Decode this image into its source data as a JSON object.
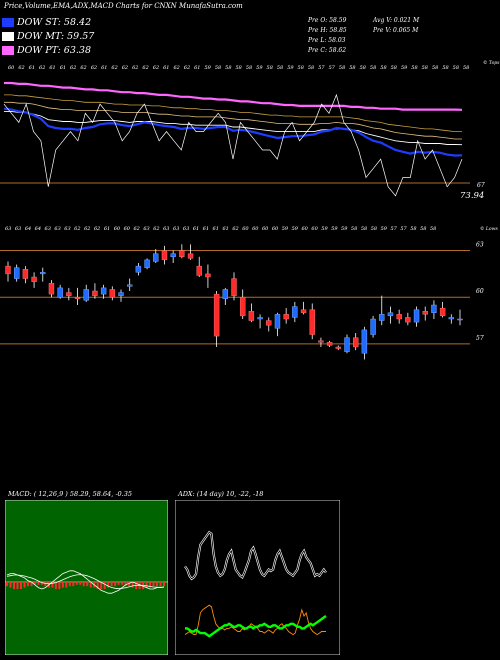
{
  "header": {
    "title": "Price,Volume,EMA,ADX,MACD Charts for CNXN",
    "site": "MunafaSutra.com",
    "legend": [
      {
        "label": "DOW ST: 58.42",
        "color": "#1e3cff"
      },
      {
        "label": "DOW MT: 59.57",
        "color": "#ffffff"
      },
      {
        "label": "DOW PT: 63.38",
        "color": "#ff66ff"
      }
    ],
    "prev": {
      "open": "Pre O: 58.59",
      "high": "Pre H: 58.85",
      "low": "Pre L: 58.03",
      "close": "Pre C: 58.62"
    },
    "avg_volume": "Avg V: 0.021 M",
    "prev_volume": "Pre V: 0.065 M"
  },
  "colors": {
    "ema_short": "#1e3cff",
    "ema_long": "#ff66ff",
    "level_line": "#b06a2a",
    "up": "#1e6bff",
    "down": "#ff2a2a",
    "macd_bg": "#006400",
    "adx_bg": "#000000",
    "adx_green": "#00ff00",
    "adx_orange": "#ff8c00"
  },
  "chart_data": [
    {
      "type": "line",
      "panel": "ema",
      "corner_label": "© Tops",
      "top_labels": [
        "60",
        "62",
        "61",
        "62",
        "61",
        "61",
        "62",
        "62",
        "62",
        "61",
        "62",
        "62",
        "62",
        "62",
        "62",
        "61",
        "62",
        "62",
        "61",
        "59",
        "58",
        "58",
        "58",
        "58",
        "59",
        "58",
        "58",
        "59",
        "58",
        "58",
        "57",
        "57",
        "58",
        "58",
        "58",
        "58",
        "58",
        "58",
        "59",
        "58",
        "58",
        "58",
        "58",
        "58",
        "58"
      ],
      "level": 67,
      "level_label": "67",
      "last_value_label": "73.94",
      "price": [
        64,
        63,
        62,
        64,
        61,
        60,
        55,
        59,
        60,
        61,
        60,
        63,
        62,
        64,
        63,
        62,
        60,
        61,
        63,
        64,
        62,
        60,
        61,
        60,
        59,
        62,
        61,
        61,
        62,
        63,
        62,
        58,
        62,
        61,
        60,
        59,
        59,
        58,
        61,
        62,
        60,
        61,
        62,
        64,
        63,
        65,
        62,
        61,
        59,
        56,
        57,
        58,
        55,
        54,
        56,
        56,
        60,
        58,
        59,
        57,
        55,
        56,
        58
      ],
      "ema_short": [
        63.5,
        63.4,
        63.2,
        63.1,
        62.8,
        62.4,
        61.6,
        61.4,
        61.3,
        61.3,
        61.2,
        61.4,
        61.5,
        61.8,
        61.9,
        61.9,
        61.7,
        61.6,
        61.8,
        62.0,
        61.9,
        61.7,
        61.6,
        61.5,
        61.3,
        61.4,
        61.4,
        61.3,
        61.4,
        61.5,
        61.5,
        61.1,
        61.2,
        61.1,
        60.9,
        60.7,
        60.5,
        60.3,
        60.4,
        60.5,
        60.5,
        60.6,
        60.7,
        61.0,
        61.1,
        61.4,
        61.3,
        61.2,
        60.9,
        60.4,
        60.0,
        59.8,
        59.4,
        59.0,
        58.8,
        58.6,
        58.8,
        58.7,
        58.8,
        58.7,
        58.5,
        58.4,
        58.42
      ],
      "ema_mid": [
        63.2,
        63.2,
        63.1,
        63.1,
        62.9,
        62.7,
        62.3,
        62.2,
        62.1,
        62.1,
        62.0,
        62.0,
        62.1,
        62.2,
        62.2,
        62.2,
        62.1,
        62.0,
        62.1,
        62.1,
        62.1,
        62.0,
        61.9,
        61.9,
        61.8,
        61.8,
        61.7,
        61.7,
        61.7,
        61.7,
        61.7,
        61.5,
        61.5,
        61.4,
        61.3,
        61.2,
        61.1,
        61.0,
        61.0,
        61.0,
        61.0,
        61.0,
        61.0,
        61.2,
        61.2,
        61.3,
        61.3,
        61.2,
        61.1,
        60.8,
        60.6,
        60.4,
        60.2,
        60.0,
        59.9,
        59.8,
        59.8,
        59.7,
        59.7,
        59.7,
        59.6,
        59.6,
        59.57
      ],
      "ema_long": [
        66.3,
        66.3,
        66.2,
        66.2,
        66.1,
        66.0,
        66.0,
        65.9,
        65.8,
        65.8,
        65.7,
        65.6,
        65.6,
        65.5,
        65.5,
        65.4,
        65.3,
        65.3,
        65.2,
        65.2,
        65.1,
        65.0,
        65.0,
        64.9,
        64.8,
        64.8,
        64.7,
        64.6,
        64.6,
        64.5,
        64.5,
        64.4,
        64.3,
        64.3,
        64.2,
        64.1,
        64.1,
        64.0,
        63.9,
        63.9,
        63.8,
        63.8,
        63.8,
        63.8,
        63.8,
        63.8,
        63.8,
        63.7,
        63.7,
        63.6,
        63.6,
        63.5,
        63.5,
        63.5,
        63.4,
        63.4,
        63.4,
        63.4,
        63.4,
        63.4,
        63.4,
        63.4,
        63.38
      ],
      "ema_200": [
        65.0,
        65.0,
        64.9,
        64.9,
        64.8,
        64.7,
        64.6,
        64.5,
        64.4,
        64.4,
        64.3,
        64.2,
        64.2,
        64.2,
        64.1,
        64.0,
        64.0,
        63.9,
        63.9,
        63.9,
        63.8,
        63.8,
        63.7,
        63.6,
        63.6,
        63.5,
        63.5,
        63.4,
        63.4,
        63.3,
        63.3,
        63.2,
        63.1,
        63.1,
        63.0,
        62.9,
        62.8,
        62.8,
        62.7,
        62.7,
        62.6,
        62.6,
        62.6,
        62.6,
        62.6,
        62.6,
        62.6,
        62.5,
        62.4,
        62.2,
        62.1,
        62.0,
        61.8,
        61.7,
        61.6,
        61.5,
        61.4,
        61.3,
        61.3,
        61.2,
        61.1,
        61.0,
        61.0
      ],
      "ema_100": [
        64.2,
        64.2,
        64.1,
        64.1,
        64.0,
        63.8,
        63.6,
        63.5,
        63.4,
        63.4,
        63.3,
        63.3,
        63.3,
        63.3,
        63.3,
        63.2,
        63.1,
        63.1,
        63.1,
        63.1,
        63.0,
        62.9,
        62.9,
        62.8,
        62.7,
        62.7,
        62.6,
        62.6,
        62.6,
        62.6,
        62.5,
        62.4,
        62.3,
        62.3,
        62.2,
        62.1,
        62.0,
        61.9,
        61.9,
        61.9,
        61.8,
        61.8,
        61.8,
        61.9,
        61.9,
        62.0,
        61.9,
        61.9,
        61.8,
        61.6,
        61.4,
        61.3,
        61.1,
        60.9,
        60.8,
        60.7,
        60.6,
        60.5,
        60.5,
        60.4,
        60.3,
        60.2,
        60.2
      ]
    },
    {
      "type": "candlestick",
      "panel": "price",
      "corner_label": "© Lows",
      "top_labels": [
        "63",
        "63",
        "64",
        "64",
        "63",
        "63",
        "63",
        "62",
        "62",
        "62",
        "61",
        "60",
        "60",
        "62",
        "63",
        "62",
        "63",
        "63",
        "63",
        "61",
        "61",
        "61",
        "61",
        "62",
        "60",
        "60",
        "60",
        "60",
        "59",
        "59",
        "60",
        "60",
        "59",
        "59",
        "59",
        "58",
        "58",
        "58",
        "59",
        "57",
        "57",
        "58",
        "58",
        "58"
      ],
      "levels": [
        63,
        60,
        57
      ],
      "level_labels": [
        "63",
        "60",
        "57"
      ],
      "ylim": [
        55,
        64
      ],
      "candles": [
        {
          "o": 62.0,
          "h": 62.3,
          "l": 61.0,
          "c": 61.5
        },
        {
          "o": 61.2,
          "h": 62.1,
          "l": 61.0,
          "c": 61.9
        },
        {
          "o": 61.8,
          "h": 62.0,
          "l": 60.9,
          "c": 61.2
        },
        {
          "o": 61.3,
          "h": 61.6,
          "l": 60.6,
          "c": 61.0
        },
        {
          "o": 61.5,
          "h": 61.9,
          "l": 61.0,
          "c": 61.6
        },
        {
          "o": 60.9,
          "h": 61.1,
          "l": 60.0,
          "c": 60.2
        },
        {
          "o": 60.0,
          "h": 60.8,
          "l": 59.9,
          "c": 60.6
        },
        {
          "o": 60.3,
          "h": 60.6,
          "l": 59.8,
          "c": 60.1
        },
        {
          "o": 60.0,
          "h": 60.6,
          "l": 59.5,
          "c": 59.9
        },
        {
          "o": 59.8,
          "h": 60.8,
          "l": 59.7,
          "c": 60.5
        },
        {
          "o": 60.4,
          "h": 60.9,
          "l": 59.9,
          "c": 60.1
        },
        {
          "o": 60.2,
          "h": 60.8,
          "l": 59.9,
          "c": 60.6
        },
        {
          "o": 60.5,
          "h": 60.7,
          "l": 59.8,
          "c": 60.0
        },
        {
          "o": 60.1,
          "h": 60.5,
          "l": 59.7,
          "c": 60.3
        },
        {
          "o": 60.7,
          "h": 61.2,
          "l": 60.4,
          "c": 60.8
        },
        {
          "o": 61.6,
          "h": 62.2,
          "l": 61.4,
          "c": 62.0
        },
        {
          "o": 61.9,
          "h": 62.5,
          "l": 61.8,
          "c": 62.4
        },
        {
          "o": 62.3,
          "h": 63.1,
          "l": 62.2,
          "c": 62.8
        },
        {
          "o": 63.0,
          "h": 63.3,
          "l": 62.1,
          "c": 62.4
        },
        {
          "o": 62.6,
          "h": 63.0,
          "l": 62.2,
          "c": 62.8
        },
        {
          "o": 63.0,
          "h": 63.4,
          "l": 62.5,
          "c": 62.6
        },
        {
          "o": 62.8,
          "h": 63.4,
          "l": 62.4,
          "c": 62.5
        },
        {
          "o": 62.0,
          "h": 62.6,
          "l": 61.3,
          "c": 61.4
        },
        {
          "o": 61.5,
          "h": 62.1,
          "l": 60.6,
          "c": 61.3
        },
        {
          "o": 60.2,
          "h": 60.4,
          "l": 56.8,
          "c": 57.5
        },
        {
          "o": 59.9,
          "h": 60.6,
          "l": 59.5,
          "c": 60.5
        },
        {
          "o": 61.2,
          "h": 61.6,
          "l": 59.8,
          "c": 60.1
        },
        {
          "o": 60.0,
          "h": 60.5,
          "l": 58.6,
          "c": 58.8
        },
        {
          "o": 59.1,
          "h": 59.6,
          "l": 58.4,
          "c": 58.5
        },
        {
          "o": 58.6,
          "h": 58.9,
          "l": 58.0,
          "c": 58.7
        },
        {
          "o": 58.5,
          "h": 58.7,
          "l": 57.8,
          "c": 58.2
        },
        {
          "o": 58.0,
          "h": 59.0,
          "l": 57.5,
          "c": 58.9
        },
        {
          "o": 58.9,
          "h": 59.3,
          "l": 58.3,
          "c": 58.6
        },
        {
          "o": 58.7,
          "h": 59.7,
          "l": 58.4,
          "c": 59.4
        },
        {
          "o": 59.2,
          "h": 59.7,
          "l": 58.9,
          "c": 59.0
        },
        {
          "o": 59.2,
          "h": 59.6,
          "l": 57.3,
          "c": 57.6
        },
        {
          "o": 57.2,
          "h": 57.4,
          "l": 56.8,
          "c": 57.1
        },
        {
          "o": 57.1,
          "h": 57.2,
          "l": 56.8,
          "c": 56.9
        },
        {
          "o": 56.8,
          "h": 56.9,
          "l": 56.6,
          "c": 56.7
        },
        {
          "o": 56.5,
          "h": 57.6,
          "l": 56.4,
          "c": 57.4
        },
        {
          "o": 57.4,
          "h": 57.7,
          "l": 56.6,
          "c": 56.8
        },
        {
          "o": 56.4,
          "h": 58.1,
          "l": 56.0,
          "c": 57.9
        },
        {
          "o": 57.6,
          "h": 58.8,
          "l": 57.4,
          "c": 58.6
        },
        {
          "o": 58.5,
          "h": 60.1,
          "l": 58.2,
          "c": 58.9
        },
        {
          "o": 58.8,
          "h": 59.4,
          "l": 58.3,
          "c": 59.0
        },
        {
          "o": 58.9,
          "h": 59.2,
          "l": 58.3,
          "c": 58.6
        },
        {
          "o": 58.7,
          "h": 59.0,
          "l": 58.2,
          "c": 58.4
        },
        {
          "o": 58.4,
          "h": 59.4,
          "l": 58.1,
          "c": 59.2
        },
        {
          "o": 59.1,
          "h": 59.4,
          "l": 58.5,
          "c": 58.9
        },
        {
          "o": 59.0,
          "h": 59.8,
          "l": 58.6,
          "c": 59.5
        },
        {
          "o": 59.3,
          "h": 59.7,
          "l": 58.7,
          "c": 58.8
        },
        {
          "o": 58.6,
          "h": 58.9,
          "l": 58.3,
          "c": 58.7
        },
        {
          "o": 58.6,
          "h": 59.2,
          "l": 58.2,
          "c": 58.6
        }
      ]
    },
    {
      "type": "macd",
      "panel": "macd",
      "title": "MACD: ( 12,26,9 ) 58.29, 58.64, -0.35",
      "macd": [
        0.5,
        0.6,
        0.6,
        0.5,
        0.4,
        0.3,
        0.1,
        0.0,
        -0.2,
        -0.4,
        -0.5,
        -0.4,
        -0.2,
        0.0,
        0.2,
        0.4,
        0.6,
        0.7,
        0.8,
        0.8,
        0.7,
        0.6,
        0.4,
        0.2,
        0.0,
        -0.2,
        -0.4,
        -0.6,
        -0.7,
        -0.8,
        -0.8,
        -0.7,
        -0.6,
        -0.4,
        -0.2,
        -0.1,
        0.0,
        -0.1,
        -0.2,
        -0.3,
        -0.4,
        -0.5,
        -0.5,
        -0.4,
        -0.4,
        -0.35
      ],
      "signal": [
        0.4,
        0.45,
        0.5,
        0.5,
        0.47,
        0.43,
        0.36,
        0.29,
        0.19,
        0.07,
        -0.04,
        -0.11,
        -0.13,
        -0.1,
        -0.04,
        0.05,
        0.16,
        0.27,
        0.38,
        0.46,
        0.51,
        0.53,
        0.5,
        0.44,
        0.35,
        0.24,
        0.11,
        -0.03,
        -0.16,
        -0.29,
        -0.39,
        -0.45,
        -0.48,
        -0.46,
        -0.41,
        -0.35,
        -0.28,
        -0.24,
        -0.23,
        -0.24,
        -0.27,
        -0.32,
        -0.36,
        -0.37,
        -0.38,
        -0.37
      ],
      "histogram": [
        0.3,
        0.4,
        0.5,
        0.5,
        0.5,
        0.4,
        0.3,
        0.3,
        0.2,
        0.2,
        0.2,
        0.3,
        0.4,
        0.4,
        0.5,
        0.5,
        0.4,
        0.4,
        0.3,
        0.3,
        0.2,
        0.2,
        0.3,
        0.3,
        0.4,
        0.4,
        0.5,
        0.5,
        0.5,
        0.4,
        0.3,
        0.3,
        0.2,
        0.2,
        0.3,
        0.3,
        0.4,
        0.5,
        0.5,
        0.5,
        0.4,
        0.4,
        0.3,
        0.3,
        0.3,
        0.3
      ]
    },
    {
      "type": "adx",
      "panel": "adx",
      "title": "ADX: (14 day) 10, -22, -18",
      "adx": [
        52,
        50,
        46,
        44,
        45,
        47,
        58,
        66,
        68,
        70,
        72,
        74,
        73,
        60,
        52,
        48,
        46,
        47,
        50,
        56,
        60,
        62,
        56,
        50,
        48,
        46,
        45,
        48,
        52,
        56,
        62,
        64,
        60,
        55,
        50,
        47,
        46,
        48,
        50,
        49,
        50,
        56,
        60,
        62,
        58,
        54,
        50,
        48,
        47,
        46,
        48,
        50,
        56,
        60,
        62,
        58,
        56,
        54,
        50,
        46,
        47,
        46,
        48,
        50,
        48
      ],
      "plus_di": [
        8,
        9,
        10,
        9,
        8,
        8,
        14,
        22,
        24,
        25,
        26,
        27,
        26,
        20,
        15,
        13,
        12,
        12,
        11,
        12,
        12,
        13,
        12,
        11,
        10,
        10,
        12,
        11,
        12,
        13,
        15,
        14,
        13,
        12,
        10,
        10,
        9,
        10,
        11,
        10,
        9,
        11,
        12,
        14,
        15,
        13,
        12,
        10,
        9,
        8,
        9,
        14,
        18,
        24,
        20,
        22,
        16,
        12,
        10,
        9,
        8,
        9,
        10,
        10,
        10
      ],
      "minus_di": [
        12,
        12,
        11,
        10,
        10,
        11,
        10,
        9,
        9,
        9,
        8,
        7,
        8,
        9,
        10,
        11,
        12,
        13,
        14,
        14,
        15,
        14,
        13,
        13,
        14,
        14,
        13,
        12,
        12,
        13,
        13,
        12,
        13,
        13,
        14,
        14,
        15,
        14,
        13,
        13,
        14,
        14,
        13,
        12,
        12,
        13,
        14,
        14,
        15,
        15,
        14,
        13,
        13,
        12,
        12,
        13,
        14,
        15,
        14,
        15,
        16,
        17,
        18,
        19,
        20
      ]
    }
  ]
}
